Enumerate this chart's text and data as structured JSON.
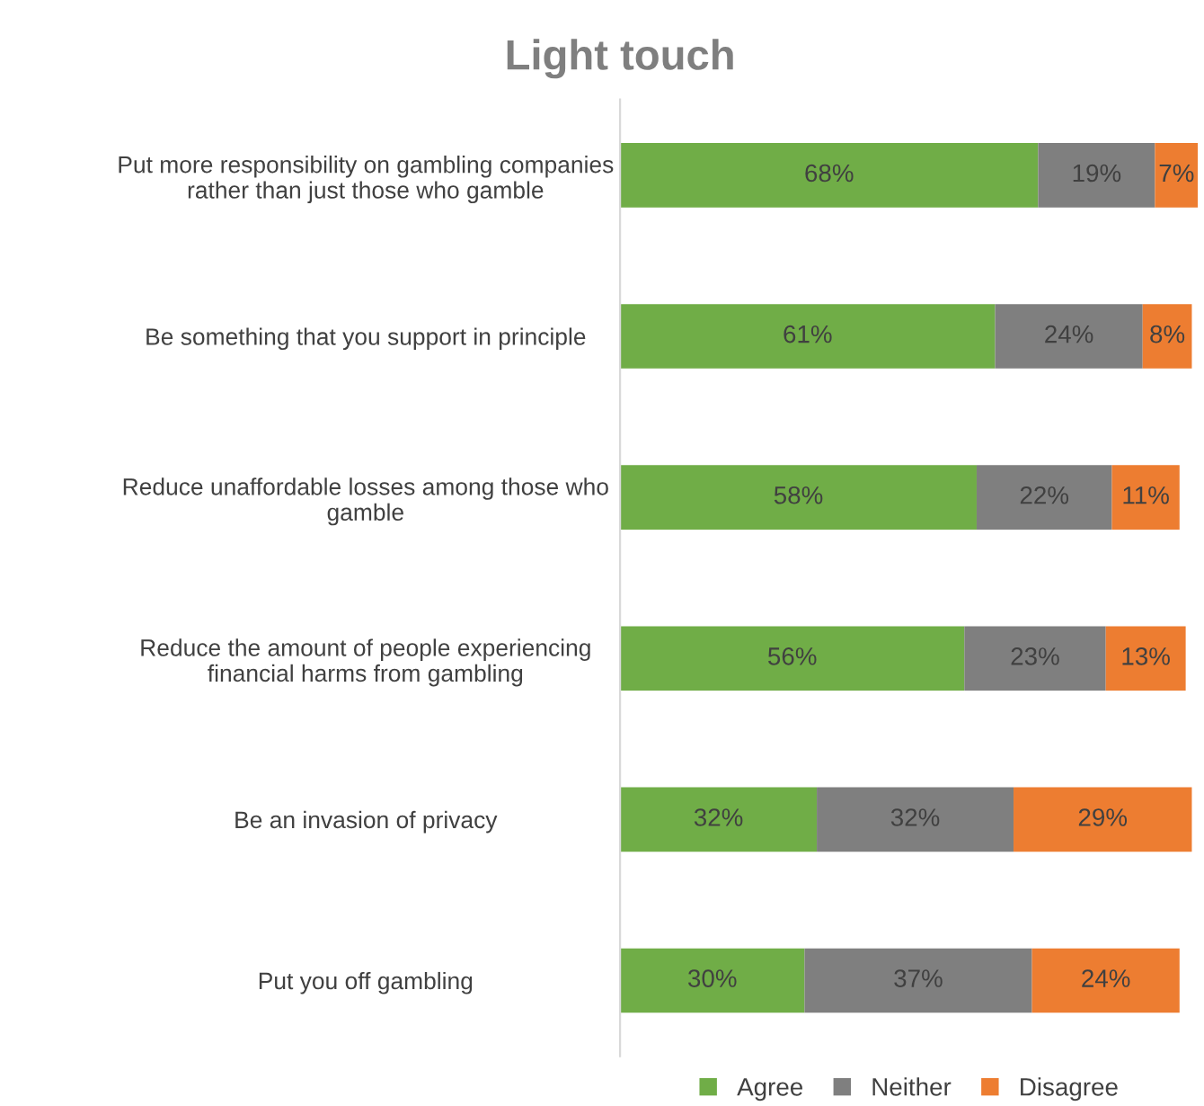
{
  "chart_data": {
    "type": "bar",
    "orientation": "horizontal",
    "stacked": true,
    "title": "Light touch",
    "categories": [
      "Put more responsibility on gambling companies\nrather than just those who gamble",
      "Be something that you support in principle",
      "Reduce unaffordable losses among those who\ngamble",
      "Reduce the amount of people experiencing\nfinancial harms from gambling",
      "Be an invasion of privacy",
      "Put you off gambling"
    ],
    "series": [
      {
        "name": "Agree",
        "color": "#70ad47",
        "values": [
          68,
          61,
          58,
          56,
          32,
          30
        ],
        "value_labels": [
          "68%",
          "61%",
          "58%",
          "56%",
          "32%",
          "30%"
        ]
      },
      {
        "name": "Neither",
        "color": "#7f7f7f",
        "values": [
          19,
          24,
          22,
          23,
          32,
          37
        ],
        "value_labels": [
          "19%",
          "24%",
          "22%",
          "23%",
          "32%",
          "37%"
        ]
      },
      {
        "name": "Disagree",
        "color": "#ed7d31",
        "values": [
          7,
          8,
          11,
          13,
          29,
          24
        ],
        "value_labels": [
          "7%",
          "8%",
          "11%",
          "13%",
          "29%",
          "24%"
        ]
      }
    ],
    "legend": "bottom",
    "grid": false
  }
}
